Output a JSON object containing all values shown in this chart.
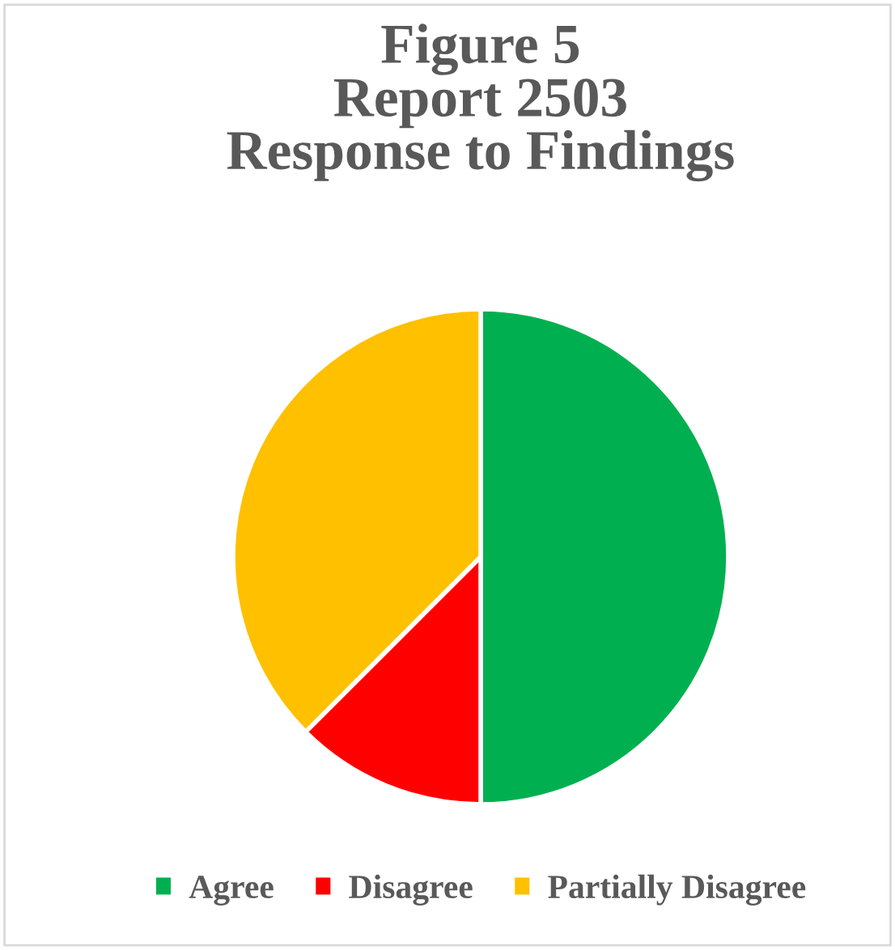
{
  "chart_data": {
    "type": "pie",
    "title": "Figure 5\nReport 2503\nResponse to Findings",
    "categories": [
      "Agree",
      "Disagree",
      "Partially Disagree"
    ],
    "values": [
      50,
      12.5,
      37.5
    ],
    "colors": [
      "#00b050",
      "#ff0000",
      "#ffc000"
    ],
    "legend": "bottom"
  }
}
